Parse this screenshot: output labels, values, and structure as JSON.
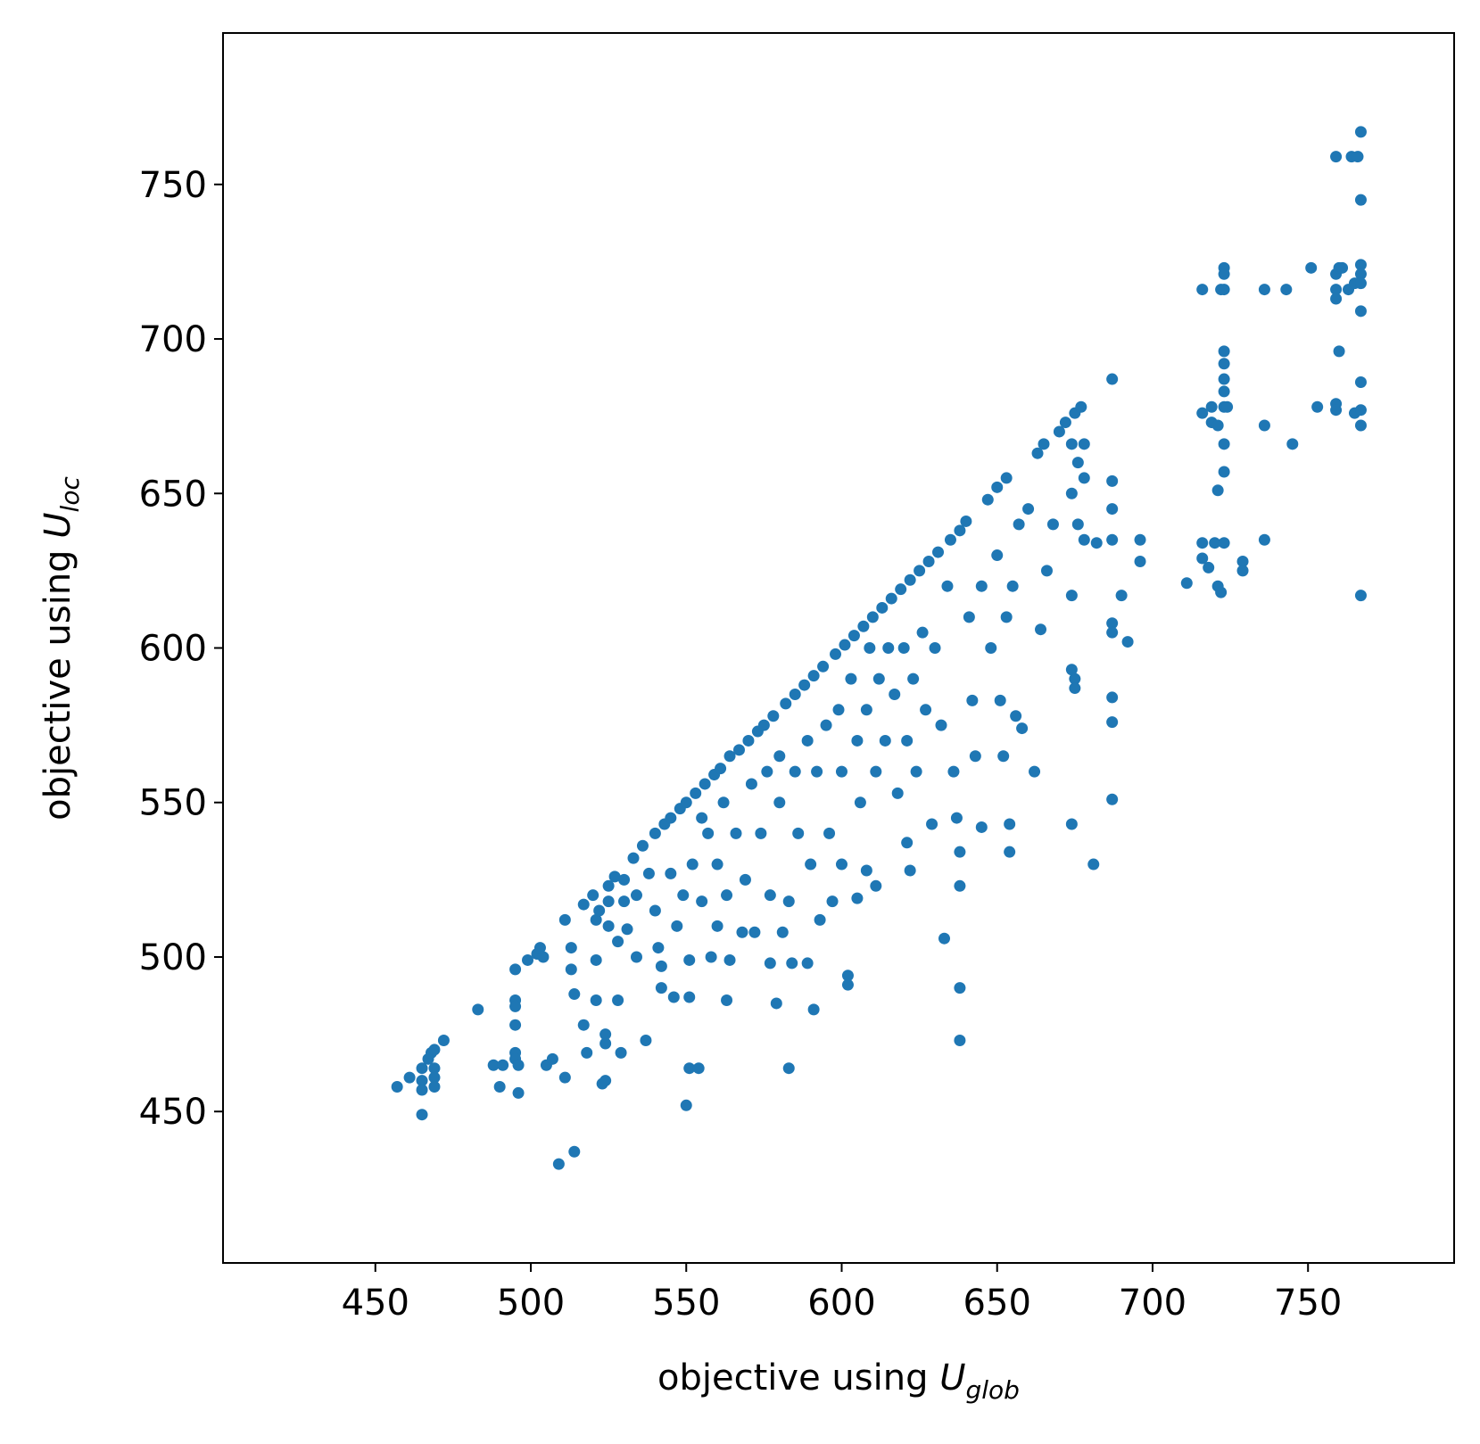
{
  "chart_data": {
    "type": "scatter",
    "xlabel": {
      "text": "objective using ",
      "var": "U",
      "sub": "glob"
    },
    "ylabel": {
      "text": "objective using ",
      "var": "U",
      "sub": "loc"
    },
    "color": "#1f77b4",
    "xlim": [
      401,
      797
    ],
    "ylim": [
      401,
      799
    ],
    "xticks": [
      450,
      500,
      550,
      600,
      650,
      700,
      750
    ],
    "yticks": [
      450,
      500,
      550,
      600,
      650,
      700,
      750
    ],
    "series": [
      {
        "x": [
          457,
          461,
          465,
          465,
          465,
          465,
          467,
          468,
          469,
          469,
          469,
          469,
          472,
          483,
          488,
          490,
          491,
          495,
          495,
          495,
          495,
          495,
          495,
          496,
          496,
          499,
          502,
          503,
          504,
          505,
          507,
          509,
          511,
          511,
          514,
          513,
          513,
          514,
          517,
          517,
          518,
          520,
          521,
          521,
          521,
          522,
          523,
          524,
          524,
          524,
          525,
          525,
          525,
          527,
          528,
          528,
          529,
          530,
          530,
          531,
          533,
          534,
          534,
          536,
          537,
          538,
          540,
          540,
          541,
          542,
          542,
          543,
          545,
          545,
          546,
          547,
          548,
          549,
          550,
          550,
          551,
          551,
          551,
          552,
          553,
          554,
          555,
          555,
          556,
          557,
          558,
          559,
          560,
          560,
          561,
          562,
          563,
          563,
          564,
          564,
          566,
          567,
          568,
          569,
          570,
          571,
          572,
          573,
          574,
          575,
          576,
          577,
          577,
          578,
          579,
          580,
          580,
          581,
          582,
          583,
          583,
          584,
          585,
          585,
          586,
          588,
          589,
          589,
          590,
          591,
          591,
          592,
          593,
          594,
          595,
          596,
          597,
          598,
          599,
          600,
          600,
          601,
          602,
          602,
          603,
          604,
          605,
          605,
          606,
          607,
          608,
          608,
          609,
          610,
          611,
          611,
          612,
          613,
          614,
          615,
          616,
          617,
          618,
          619,
          620,
          621,
          621,
          622,
          622,
          623,
          624,
          625,
          626,
          627,
          628,
          629,
          630,
          631,
          632,
          633,
          634,
          635,
          636,
          637,
          638,
          638,
          638,
          638,
          638,
          640,
          641,
          642,
          643,
          645,
          645,
          647,
          648,
          650,
          650,
          651,
          652,
          653,
          653,
          654,
          654,
          655,
          656,
          657,
          658,
          660,
          662,
          663,
          664,
          665,
          666,
          668,
          670,
          672,
          674,
          674,
          674,
          674,
          674,
          675,
          675,
          675,
          676,
          676,
          677,
          678,
          678,
          678,
          681,
          682,
          687,
          687,
          687,
          687,
          687,
          687,
          687,
          687,
          687,
          690,
          692,
          696,
          696,
          711,
          716,
          716,
          716,
          716,
          718,
          719,
          719,
          720,
          721,
          721,
          721,
          722,
          722,
          723,
          723,
          723,
          723,
          723,
          723,
          723,
          723,
          723,
          723,
          723,
          724,
          729,
          729,
          736,
          736,
          736,
          743,
          745,
          751,
          753,
          759,
          759,
          759,
          759,
          759,
          759,
          760,
          760,
          761,
          763,
          764,
          765,
          765,
          766,
          767,
          767,
          767,
          767,
          767,
          767,
          767,
          767,
          767,
          767
        ],
        "values": [
          458,
          461,
          464,
          460,
          457,
          449,
          467,
          469,
          470,
          464,
          461,
          458,
          473,
          483,
          465,
          458,
          465,
          496,
          486,
          484,
          478,
          469,
          467,
          465,
          456,
          499,
          501,
          503,
          500,
          465,
          467,
          433,
          512,
          461,
          437,
          503,
          496,
          488,
          517,
          478,
          469,
          520,
          512,
          499,
          486,
          515,
          459,
          460,
          472,
          475,
          523,
          518,
          510,
          526,
          505,
          486,
          469,
          525,
          518,
          509,
          532,
          520,
          500,
          536,
          473,
          527,
          540,
          515,
          503,
          490,
          497,
          543,
          545,
          527,
          487,
          510,
          548,
          520,
          550,
          452,
          464,
          487,
          499,
          530,
          553,
          464,
          545,
          518,
          556,
          540,
          500,
          559,
          510,
          530,
          561,
          550,
          520,
          486,
          565,
          499,
          540,
          567,
          508,
          525,
          570,
          556,
          508,
          573,
          540,
          575,
          560,
          520,
          498,
          578,
          485,
          565,
          550,
          508,
          582,
          518,
          464,
          498,
          585,
          560,
          540,
          588,
          570,
          498,
          530,
          591,
          483,
          560,
          512,
          594,
          575,
          540,
          518,
          598,
          580,
          560,
          530,
          601,
          494,
          491,
          590,
          604,
          570,
          519,
          550,
          607,
          580,
          528,
          600,
          610,
          560,
          523,
          590,
          613,
          570,
          600,
          616,
          585,
          553,
          619,
          600,
          570,
          537,
          622,
          528,
          590,
          560,
          625,
          605,
          580,
          628,
          543,
          600,
          631,
          575,
          506,
          620,
          635,
          560,
          545,
          638,
          534,
          523,
          490,
          473,
          641,
          610,
          583,
          565,
          620,
          542,
          648,
          600,
          652,
          630,
          583,
          565,
          655,
          610,
          543,
          534,
          620,
          578,
          640,
          574,
          645,
          560,
          663,
          606,
          666,
          625,
          640,
          670,
          673,
          666,
          650,
          617,
          593,
          543,
          676,
          590,
          587,
          660,
          640,
          678,
          666,
          635,
          655,
          530,
          634,
          687,
          654,
          645,
          635,
          608,
          605,
          584,
          576,
          551,
          617,
          602,
          635,
          628,
          621,
          716,
          676,
          634,
          629,
          626,
          678,
          673,
          634,
          672,
          651,
          620,
          716,
          618,
          723,
          721,
          716,
          696,
          692,
          687,
          683,
          678,
          666,
          657,
          634,
          678,
          628,
          625,
          716,
          672,
          635,
          716,
          666,
          723,
          678,
          759,
          721,
          716,
          713,
          679,
          677,
          723,
          696,
          723,
          716,
          759,
          718,
          676,
          759,
          767,
          745,
          724,
          721,
          718,
          709,
          686,
          677,
          672,
          617
        ]
      }
    ]
  }
}
